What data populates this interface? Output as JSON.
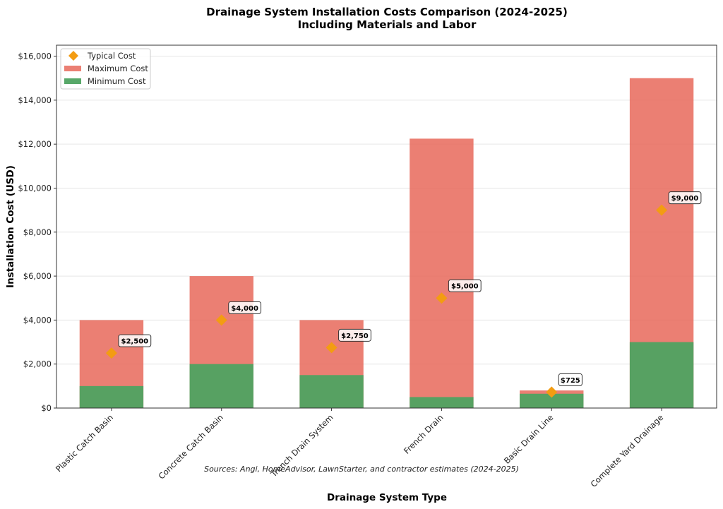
{
  "chart_data": {
    "type": "bar",
    "title": "Drainage System Installation Costs Comparison (2024-2025)",
    "subtitle": "Including Materials and Labor",
    "xlabel": "Drainage System Type",
    "ylabel": "Installation Cost (USD)",
    "ylim": [
      0,
      16500
    ],
    "yticks": [
      0,
      2000,
      4000,
      6000,
      8000,
      10000,
      12000,
      14000,
      16000
    ],
    "ytick_labels": [
      "$0",
      "$2,000",
      "$4,000",
      "$6,000",
      "$8,000",
      "$10,000",
      "$12,000",
      "$14,000",
      "$16,000"
    ],
    "grid": true,
    "legend_position": "top-left",
    "categories": [
      "Plastic Catch Basin",
      "Concrete Catch Basin",
      "Trench Drain System",
      "French Drain",
      "Basic Drain Line",
      "Complete Yard Drainage"
    ],
    "series": [
      {
        "name": "Maximum Cost",
        "kind": "bar",
        "color": "#e8685a",
        "values": [
          4000,
          6000,
          4000,
          12250,
          800,
          15000
        ]
      },
      {
        "name": "Minimum Cost",
        "kind": "bar",
        "color": "#4fa361",
        "values": [
          1000,
          2000,
          1500,
          500,
          650,
          3000
        ]
      },
      {
        "name": "Typical Cost",
        "kind": "marker",
        "marker": "diamond",
        "color": "#f39c12",
        "values": [
          2500,
          4000,
          2750,
          5000,
          725,
          9000
        ]
      }
    ],
    "data_labels": [
      "$2,500",
      "$4,000",
      "$2,750",
      "$5,000",
      "$725",
      "$9,000"
    ],
    "legend": [
      {
        "label": "Typical Cost",
        "color": "#f39c12",
        "symbol": "diamond"
      },
      {
        "label": "Maximum Cost",
        "color": "#e8685a",
        "symbol": "patch"
      },
      {
        "label": "Minimum Cost",
        "color": "#4fa361",
        "symbol": "patch"
      }
    ],
    "annotation": "Sources: Angi, HomeAdvisor, LawnStarter, and contractor estimates (2024-2025)"
  }
}
